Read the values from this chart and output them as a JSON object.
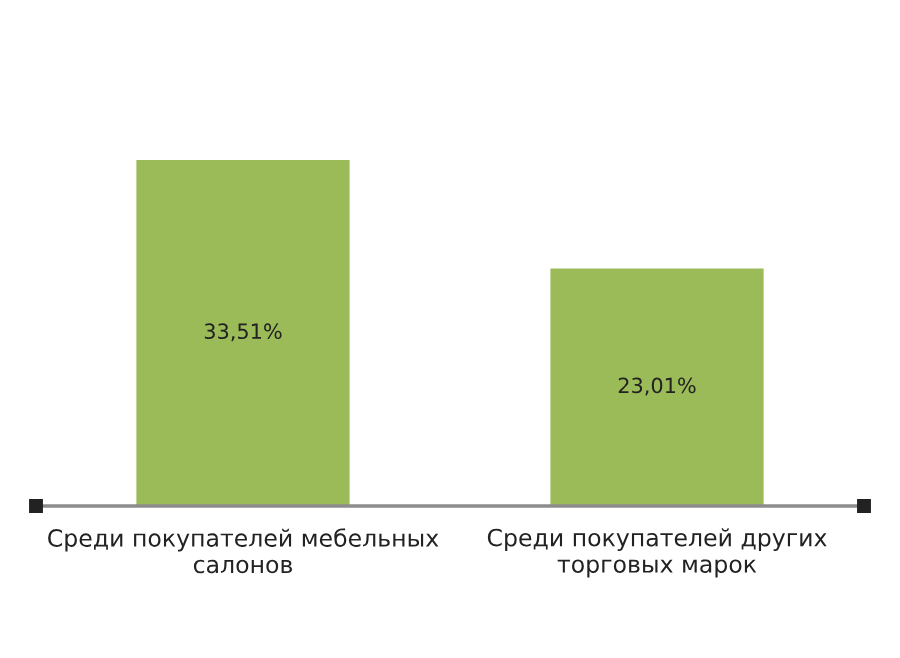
{
  "chart_data": {
    "type": "bar",
    "categories": [
      "Среди покупателей мебельных салонов",
      "Среди покупателей других торговых марок"
    ],
    "values": [
      33.51,
      23.01
    ],
    "value_labels": [
      "33,51%",
      "23,01%"
    ],
    "color": "#9bbb59",
    "grid": false,
    "legend": false
  }
}
